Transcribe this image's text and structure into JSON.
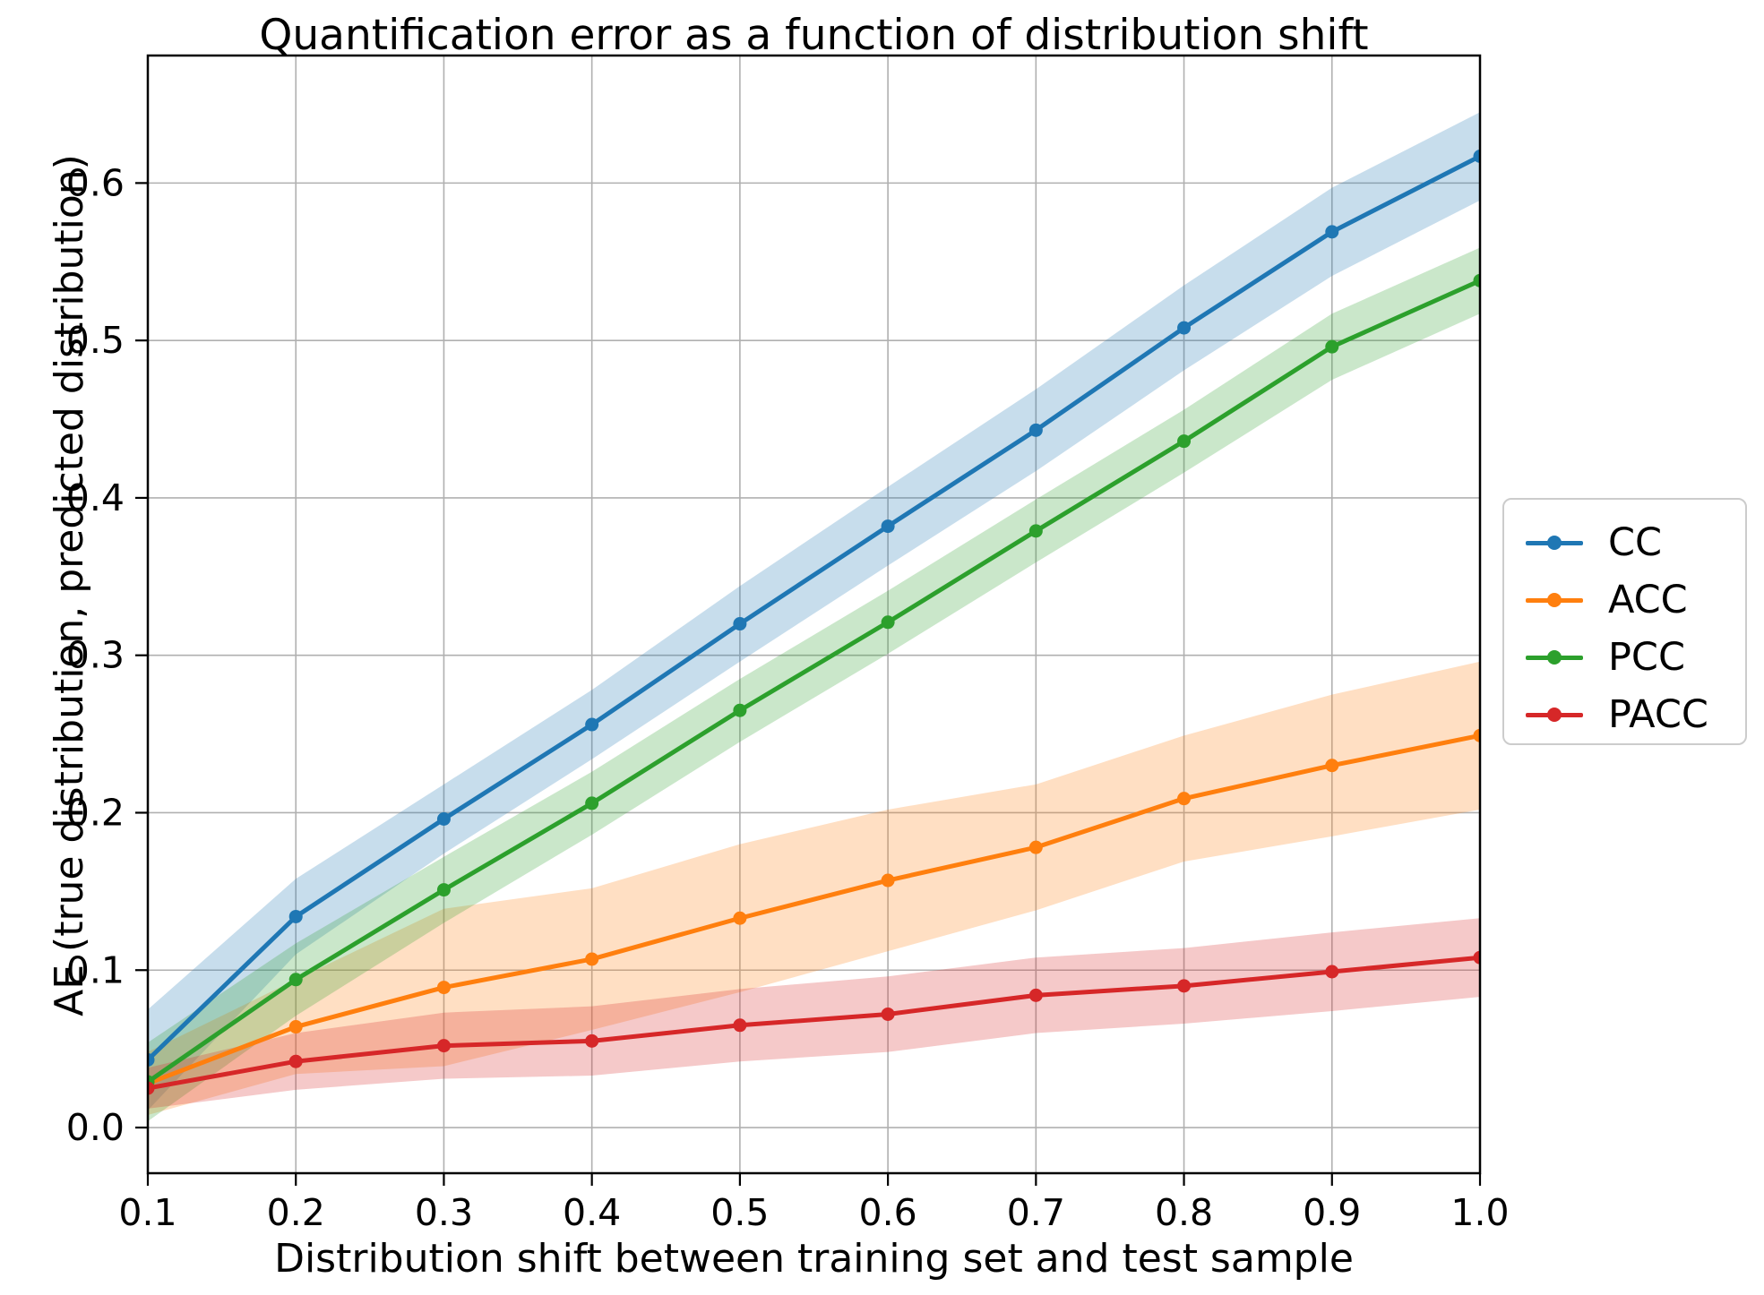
{
  "figure": {
    "title": "Quantification error as a function of distribution shift"
  },
  "chart_data": {
    "type": "line",
    "title": "Quantification error as a function of distribution shift",
    "xlabel": "Distribution shift between training set and test sample",
    "ylabel": "AE (true distribution, predicted distribution)",
    "x": [
      0.1,
      0.2,
      0.3,
      0.4,
      0.5,
      0.6,
      0.7,
      0.8,
      0.9,
      1.0
    ],
    "x_tick_labels": [
      "0.1",
      "0.2",
      "0.3",
      "0.4",
      "0.5",
      "0.6",
      "0.7",
      "0.8",
      "0.9",
      "1.0"
    ],
    "y_ticks": [
      0.0,
      0.1,
      0.2,
      0.3,
      0.4,
      0.5,
      0.6
    ],
    "y_tick_labels": [
      "0.0",
      "0.1",
      "0.2",
      "0.3",
      "0.4",
      "0.5",
      "0.6"
    ],
    "xlim": [
      0.1,
      1.0
    ],
    "ylim": [
      -0.029,
      0.681
    ],
    "grid": true,
    "grid_color": "#b0b0b0",
    "band_opacity": 0.25,
    "legend_position": "outside-center-right",
    "series": [
      {
        "name": "CC",
        "color": "#1f77b4",
        "values": [
          0.043,
          0.134,
          0.196,
          0.256,
          0.32,
          0.382,
          0.443,
          0.508,
          0.569,
          0.617
        ],
        "band_lower": [
          0.011,
          0.11,
          0.174,
          0.234,
          0.296,
          0.357,
          0.417,
          0.481,
          0.541,
          0.589
        ],
        "band_upper": [
          0.075,
          0.158,
          0.218,
          0.278,
          0.344,
          0.407,
          0.469,
          0.535,
          0.597,
          0.645
        ]
      },
      {
        "name": "ACC",
        "color": "#ff7f0e",
        "values": [
          0.028,
          0.064,
          0.089,
          0.107,
          0.133,
          0.157,
          0.178,
          0.209,
          0.23,
          0.249
        ],
        "band_lower": [
          0.008,
          0.034,
          0.039,
          0.062,
          0.086,
          0.112,
          0.138,
          0.169,
          0.185,
          0.202
        ],
        "band_upper": [
          0.048,
          0.094,
          0.139,
          0.152,
          0.18,
          0.202,
          0.218,
          0.249,
          0.275,
          0.296
        ]
      },
      {
        "name": "PCC",
        "color": "#2ca02c",
        "values": [
          0.029,
          0.094,
          0.151,
          0.206,
          0.265,
          0.321,
          0.379,
          0.436,
          0.496,
          0.538
        ],
        "band_lower": [
          0.004,
          0.071,
          0.13,
          0.186,
          0.245,
          0.301,
          0.359,
          0.416,
          0.475,
          0.517
        ],
        "band_upper": [
          0.054,
          0.117,
          0.172,
          0.226,
          0.285,
          0.341,
          0.399,
          0.456,
          0.517,
          0.559
        ]
      },
      {
        "name": "PACC",
        "color": "#d62728",
        "values": [
          0.025,
          0.042,
          0.052,
          0.055,
          0.065,
          0.072,
          0.084,
          0.09,
          0.099,
          0.108
        ],
        "band_lower": [
          0.012,
          0.024,
          0.031,
          0.033,
          0.042,
          0.048,
          0.06,
          0.066,
          0.074,
          0.083
        ],
        "band_upper": [
          0.038,
          0.06,
          0.073,
          0.077,
          0.088,
          0.096,
          0.108,
          0.114,
          0.124,
          0.133
        ]
      }
    ]
  }
}
